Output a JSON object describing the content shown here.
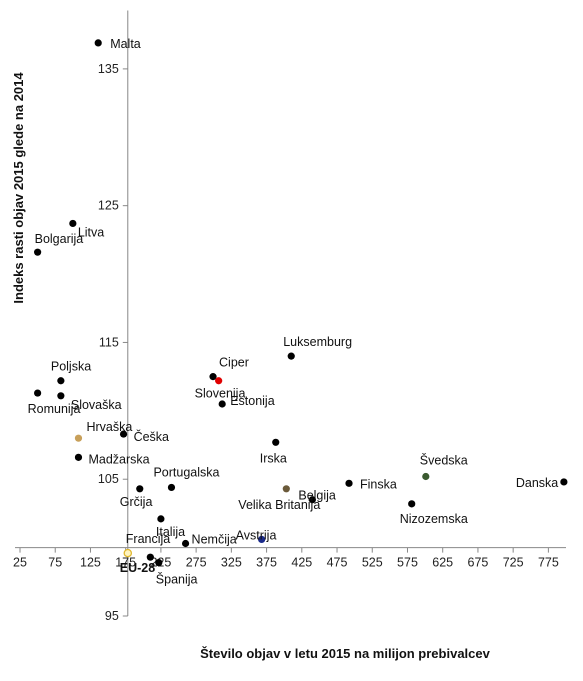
{
  "chart_data": {
    "type": "scatter",
    "title": "",
    "xlabel": "Število objav  v letu 2015 na milijon prebivalcev",
    "ylabel": "Indeks rasti objav 2015 glede na 2014",
    "xlim": [
      25,
      800
    ],
    "ylim": [
      95,
      140
    ],
    "x_ticks": [
      "25",
      "75",
      "125",
      "175",
      "225",
      "275",
      "325",
      "375",
      "425",
      "475",
      "525",
      "575",
      "625",
      "675",
      "725",
      "775"
    ],
    "y_ticks": [
      "95",
      "105",
      "115",
      "125",
      "135"
    ],
    "y_axis_crosses_x": 178,
    "x_axis_crosses_y": 100,
    "grid": false,
    "legend": "none",
    "points": [
      {
        "label": "Malta",
        "x": 136,
        "y": 136.9,
        "color": "#000000"
      },
      {
        "label": "Litva",
        "x": 100,
        "y": 123.7,
        "color": "#000000"
      },
      {
        "label": "Bolgarija",
        "x": 50,
        "y": 121.6,
        "color": "#000000"
      },
      {
        "label": "Luksemburg",
        "x": 410,
        "y": 114.0,
        "color": "#000000"
      },
      {
        "label": "Ciper",
        "x": 299,
        "y": 112.5,
        "color": "#000000"
      },
      {
        "label": "Slovenija",
        "x": 307,
        "y": 112.2,
        "color": "#e00000",
        "label_color": "#e00000"
      },
      {
        "label": "Estonija",
        "x": 312,
        "y": 110.5,
        "color": "#000000"
      },
      {
        "label": "Poljska",
        "x": 83,
        "y": 112.2,
        "color": "#000000"
      },
      {
        "label": "Romunija",
        "x": 50,
        "y": 111.3,
        "color": "#000000"
      },
      {
        "label": "Slovaška",
        "x": 83,
        "y": 111.1,
        "color": "#000000"
      },
      {
        "label": "Hrvaška",
        "x": 108,
        "y": 108.0,
        "color": "#c8a05a"
      },
      {
        "label": "Češka",
        "x": 172,
        "y": 108.3,
        "color": "#000000"
      },
      {
        "label": "Madžarska",
        "x": 108,
        "y": 106.6,
        "color": "#000000"
      },
      {
        "label": "Irska",
        "x": 388,
        "y": 107.7,
        "color": "#000000"
      },
      {
        "label": "Švedska",
        "x": 601,
        "y": 105.2,
        "color": "#3a5a30"
      },
      {
        "label": "Danska",
        "x": 797,
        "y": 104.8,
        "color": "#000000"
      },
      {
        "label": "Portugalska",
        "x": 240,
        "y": 104.4,
        "color": "#000000"
      },
      {
        "label": "Grčija",
        "x": 195,
        "y": 104.3,
        "color": "#000000"
      },
      {
        "label": "Velika Britanija",
        "x": 403,
        "y": 104.3,
        "color": "#6b5a3a"
      },
      {
        "label": "Belgija",
        "x": 440,
        "y": 103.5,
        "color": "#000000"
      },
      {
        "label": "Finska",
        "x": 492,
        "y": 104.7,
        "color": "#000000"
      },
      {
        "label": "Nizozemska",
        "x": 581,
        "y": 103.2,
        "color": "#000000"
      },
      {
        "label": "Italija",
        "x": 225,
        "y": 102.1,
        "color": "#000000"
      },
      {
        "label": "Avstrija",
        "x": 368,
        "y": 100.6,
        "color": "#1a2a8a"
      },
      {
        "label": "Nemčija",
        "x": 260,
        "y": 100.3,
        "color": "#000000"
      },
      {
        "label": "Francija",
        "x": 178,
        "y": 99.6,
        "color": "#e0b830",
        "open": true
      },
      {
        "label": "EU-28",
        "x": 178,
        "y": 99.6,
        "color": "#e0b830",
        "label_color": "#e0b830",
        "bold": true,
        "marker": false
      },
      {
        "label": "Španija",
        "x": 222,
        "y": 98.9,
        "color": "#000000"
      },
      {
        "label": "",
        "x": 210,
        "y": 99.3,
        "color": "#000000"
      }
    ]
  }
}
